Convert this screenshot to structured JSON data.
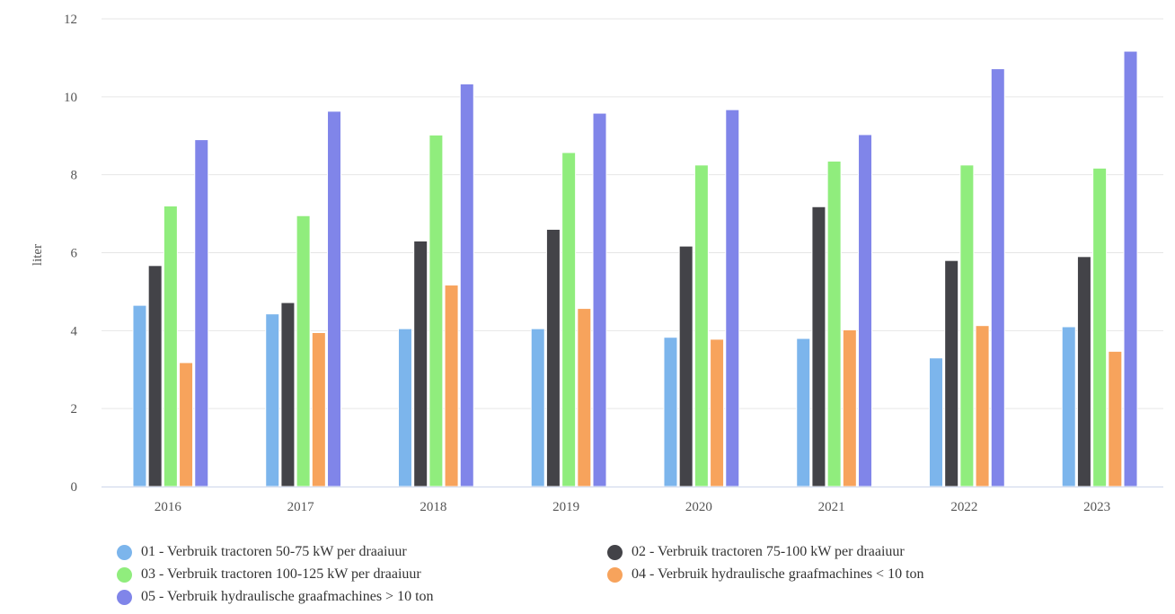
{
  "chart_data": {
    "type": "bar",
    "title": "",
    "xlabel": "",
    "ylabel": "liter",
    "ylim": [
      0,
      12
    ],
    "yticks": [
      0,
      2,
      4,
      6,
      8,
      10,
      12
    ],
    "grid": true,
    "legend_position": "bottom",
    "categories": [
      "2016",
      "2017",
      "2018",
      "2019",
      "2020",
      "2021",
      "2022",
      "2023"
    ],
    "series": [
      {
        "name": "01 - Verbruik tractoren 50-75 kW per draaiuur",
        "color": "#7cb5ec",
        "values": [
          4.65,
          4.43,
          4.05,
          4.05,
          3.83,
          3.8,
          3.3,
          4.1
        ]
      },
      {
        "name": "02 - Verbruik tractoren 75-100 kW per draaiuur",
        "color": "#434348",
        "values": [
          5.67,
          4.72,
          6.3,
          6.6,
          6.17,
          7.18,
          5.8,
          5.9
        ]
      },
      {
        "name": "03 - Verbruik tractoren 100-125 kW per draaiuur",
        "color": "#90ed7d",
        "values": [
          7.2,
          6.95,
          9.02,
          8.57,
          8.25,
          8.35,
          8.25,
          8.17
        ]
      },
      {
        "name": "04 - Verbruik hydraulische graafmachines < 10 ton",
        "color": "#f7a35c",
        "values": [
          3.18,
          3.95,
          5.17,
          4.57,
          3.78,
          4.02,
          4.13,
          3.47
        ]
      },
      {
        "name": "05 - Verbruik hydraulische graafmachines > 10 ton",
        "color": "#8085e9",
        "values": [
          8.9,
          9.63,
          10.33,
          9.58,
          9.67,
          9.03,
          10.72,
          11.17
        ]
      }
    ]
  }
}
